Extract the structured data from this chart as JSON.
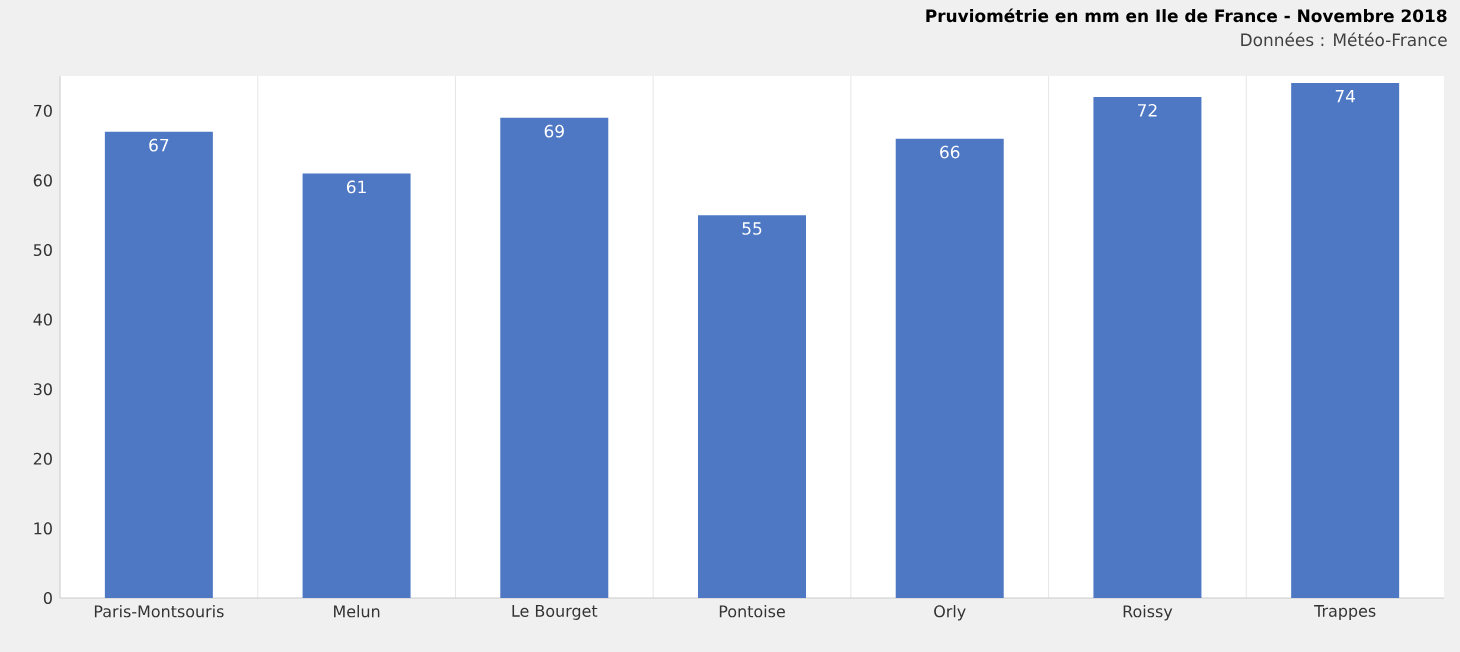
{
  "chart_data": {
    "type": "bar",
    "title": "Pruviométrie en mm en Ile de France - Novembre 2018",
    "subtitle": "Données : Météo-France",
    "categories": [
      "Paris-Montsouris",
      "Melun",
      "Le Bourget",
      "Pontoise",
      "Orly",
      "Roissy",
      "Trappes"
    ],
    "values": [
      67,
      61,
      69,
      55,
      66,
      72,
      74
    ],
    "color": "#4e78c4",
    "ylim": [
      0,
      75
    ],
    "yticks": [
      0,
      10,
      20,
      30,
      40,
      50,
      60,
      70
    ],
    "grid": "x",
    "data_labels": true
  }
}
